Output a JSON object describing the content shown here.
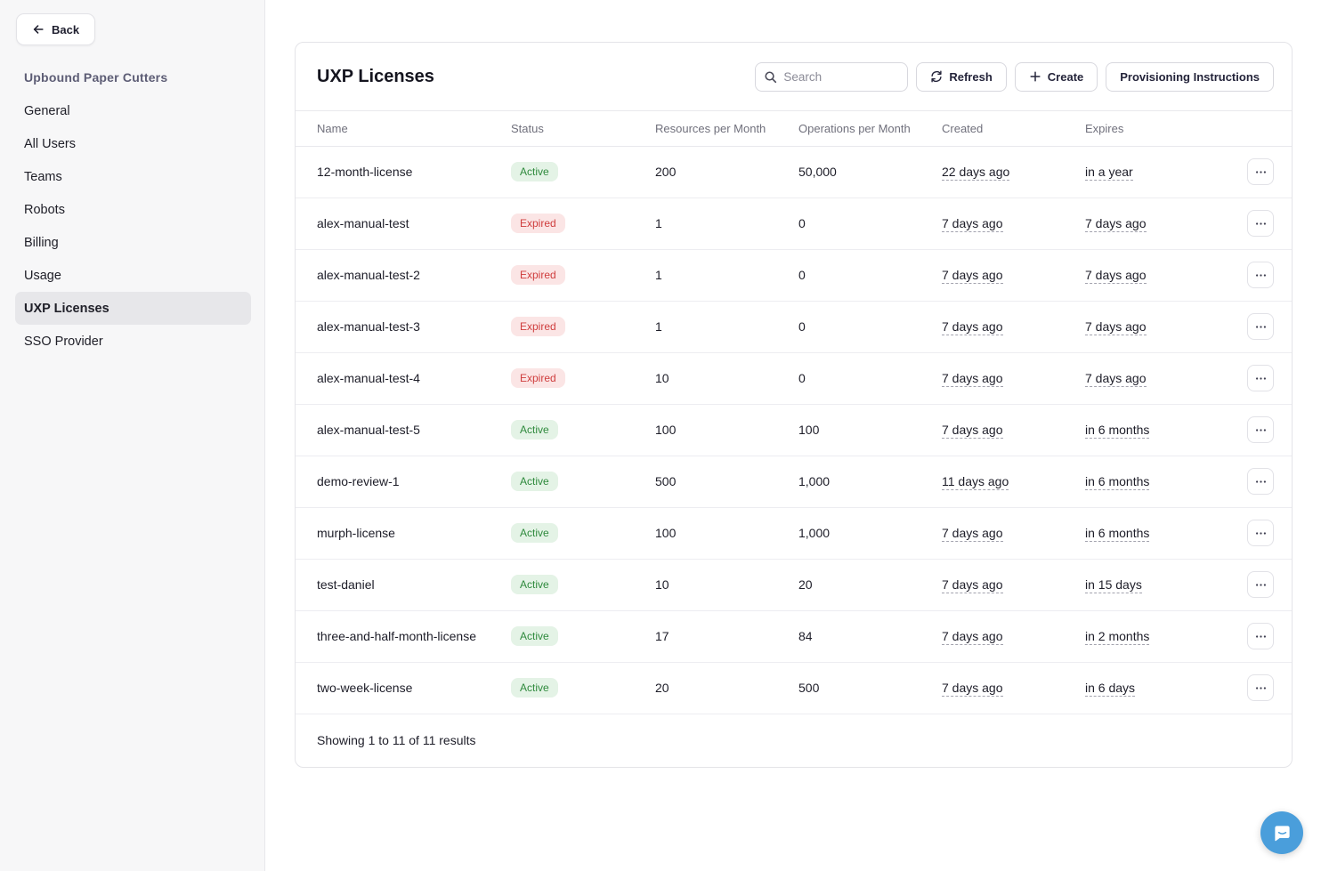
{
  "sidebar": {
    "back_label": "Back",
    "org_title": "Upbound Paper Cutters",
    "items": [
      {
        "label": "General",
        "active": false
      },
      {
        "label": "All Users",
        "active": false
      },
      {
        "label": "Teams",
        "active": false
      },
      {
        "label": "Robots",
        "active": false
      },
      {
        "label": "Billing",
        "active": false
      },
      {
        "label": "Usage",
        "active": false
      },
      {
        "label": "UXP Licenses",
        "active": true
      },
      {
        "label": "SSO Provider",
        "active": false
      }
    ]
  },
  "header": {
    "title": "UXP Licenses",
    "search_placeholder": "Search",
    "refresh_label": "Refresh",
    "create_label": "Create",
    "provisioning_label": "Provisioning Instructions"
  },
  "table": {
    "columns": [
      "Name",
      "Status",
      "Resources per Month",
      "Operations per Month",
      "Created",
      "Expires"
    ],
    "rows": [
      {
        "name": "12-month-license",
        "status": "Active",
        "resources": "200",
        "operations": "50,000",
        "created": "22 days ago",
        "expires": "in a year"
      },
      {
        "name": "alex-manual-test",
        "status": "Expired",
        "resources": "1",
        "operations": "0",
        "created": "7 days ago",
        "expires": "7 days ago"
      },
      {
        "name": "alex-manual-test-2",
        "status": "Expired",
        "resources": "1",
        "operations": "0",
        "created": "7 days ago",
        "expires": "7 days ago"
      },
      {
        "name": "alex-manual-test-3",
        "status": "Expired",
        "resources": "1",
        "operations": "0",
        "created": "7 days ago",
        "expires": "7 days ago"
      },
      {
        "name": "alex-manual-test-4",
        "status": "Expired",
        "resources": "10",
        "operations": "0",
        "created": "7 days ago",
        "expires": "7 days ago"
      },
      {
        "name": "alex-manual-test-5",
        "status": "Active",
        "resources": "100",
        "operations": "100",
        "created": "7 days ago",
        "expires": "in 6 months"
      },
      {
        "name": "demo-review-1",
        "status": "Active",
        "resources": "500",
        "operations": "1,000",
        "created": "11 days ago",
        "expires": "in 6 months"
      },
      {
        "name": "murph-license",
        "status": "Active",
        "resources": "100",
        "operations": "1,000",
        "created": "7 days ago",
        "expires": "in 6 months"
      },
      {
        "name": "test-daniel",
        "status": "Active",
        "resources": "10",
        "operations": "20",
        "created": "7 days ago",
        "expires": "in 15 days"
      },
      {
        "name": "three-and-half-month-license",
        "status": "Active",
        "resources": "17",
        "operations": "84",
        "created": "7 days ago",
        "expires": "in 2 months"
      },
      {
        "name": "two-week-license",
        "status": "Active",
        "resources": "20",
        "operations": "500",
        "created": "7 days ago",
        "expires": "in 6 days"
      }
    ],
    "footer": "Showing 1 to 11 of 11 results"
  },
  "icons": {
    "back": "arrow-left",
    "search": "magnifier",
    "refresh": "circular-arrows",
    "create": "plus",
    "row_actions": "ellipsis",
    "chat": "chat-bubble-smile"
  },
  "colors": {
    "sidebar_bg": "#f7f7f8",
    "nav_active_bg": "#e7e7ea",
    "status_active_bg": "#e4f3e6",
    "status_active_text": "#2f8a3d",
    "status_expired_bg": "#fbe5e5",
    "status_expired_text": "#cf3d3d",
    "chat_button": "#4a9edb"
  }
}
